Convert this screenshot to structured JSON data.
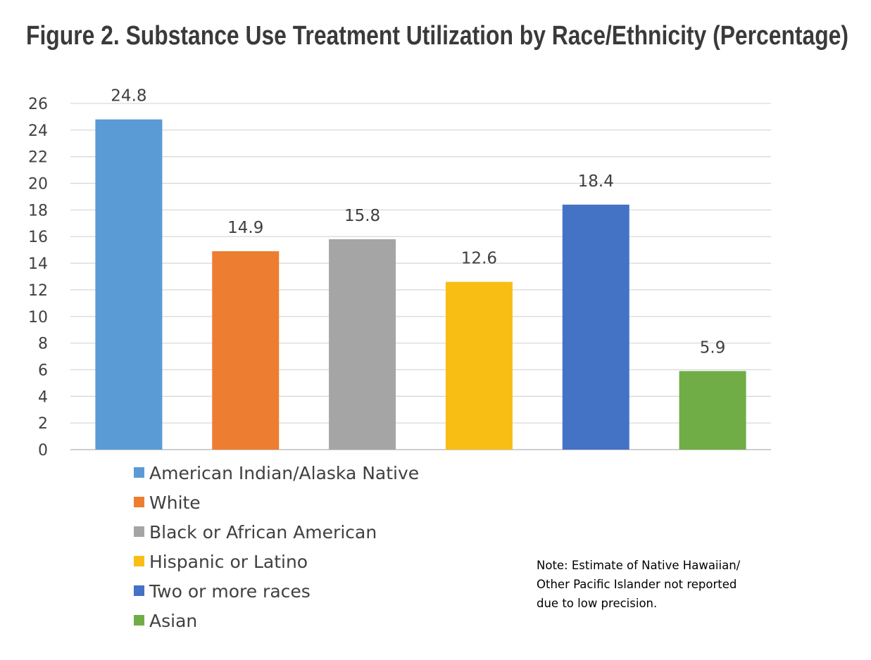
{
  "chart_data": {
    "type": "bar",
    "title": "Figure 2. Substance Use Treatment Utilization by Race/Ethnicity (Percentage)",
    "categories": [
      "American Indian/Alaska Native",
      "White",
      "Black or African American",
      "Hispanic or Latino",
      "Two or more races",
      "Asian"
    ],
    "values": [
      24.8,
      14.9,
      15.8,
      12.6,
      18.4,
      5.9
    ],
    "data_labels": [
      "24.8",
      "14.9",
      "15.8",
      "12.6",
      "18.4",
      "5.9"
    ],
    "colors": [
      "#5B9BD5",
      "#ED7D31",
      "#A5A5A5",
      "#F9BE14",
      "#4472C4",
      "#70AD47"
    ],
    "ylim": [
      0,
      26
    ],
    "yticks": [
      0,
      2,
      4,
      6,
      8,
      10,
      12,
      14,
      16,
      18,
      20,
      22,
      24,
      26
    ],
    "xlabel": "",
    "ylabel": "",
    "grid": true,
    "legend_position": "bottom-left",
    "note": [
      "Note: Estimate of Native Hawaiian/",
      "Other Pacific Islander not reported",
      "due to low precision."
    ]
  }
}
